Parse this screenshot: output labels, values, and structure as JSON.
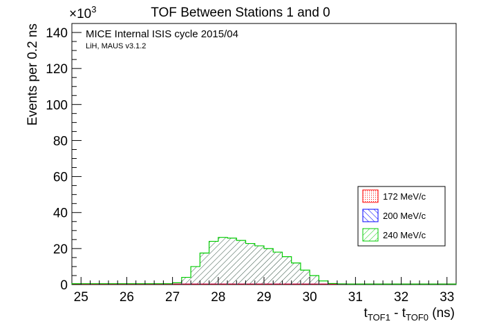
{
  "chart_data": {
    "type": "bar",
    "title": "TOF Between Stations 1 and 0",
    "xlabel_main": "t",
    "xlabel_sub1": "TOF1",
    "xlabel_mid": " - t",
    "xlabel_sub0": "TOF0",
    "xlabel_unit": " (ns)",
    "ylabel": "Events per 0.2 ns",
    "y_multiplier": "×10",
    "y_multiplier_exp": "3",
    "annotation": "MICE Internal ISIS cycle 2015/04",
    "annotation_sub": "LiH, MAUS v3.1.2",
    "xlim": [
      24.8,
      33.2
    ],
    "ylim": [
      0,
      145
    ],
    "x_ticks": [
      "25",
      "26",
      "27",
      "28",
      "29",
      "30",
      "31",
      "32",
      "33"
    ],
    "y_ticks": [
      "0",
      "20",
      "40",
      "60",
      "80",
      "100",
      "120",
      "140"
    ],
    "bin_width": 0.2,
    "x": [
      24.8,
      25.0,
      25.2,
      25.4,
      25.6,
      25.8,
      26.0,
      26.2,
      26.4,
      26.6,
      26.8,
      27.0,
      27.2,
      27.4,
      27.6,
      27.8,
      28.0,
      28.2,
      28.4,
      28.6,
      28.8,
      29.0,
      29.2,
      29.4,
      29.6,
      29.8,
      30.0,
      30.2,
      30.4,
      30.6,
      30.8,
      31.0,
      31.2,
      31.4,
      31.6,
      31.8,
      32.0,
      32.2,
      32.4,
      32.6,
      32.8,
      33.0
    ],
    "series": [
      {
        "name": "172 MeV/c",
        "color": "#ff0000",
        "hatch": "dots",
        "values": [
          0.3,
          0.3,
          0.3,
          0.3,
          0.3,
          0.3,
          0.3,
          0.3,
          0.3,
          0.3,
          0.3,
          0.3,
          0.3,
          0.3,
          0.3,
          0.3,
          0.3,
          0.3,
          0.3,
          0.3,
          0.3,
          0.3,
          0.3,
          0.3,
          0.3,
          0.3,
          0.3,
          0.3,
          0.3,
          0.3,
          0.3,
          0.3,
          0.3,
          0.3,
          0.3,
          0.3,
          0.3,
          0.3,
          0.3,
          0.3,
          0.3,
          0.3
        ]
      },
      {
        "name": "200 MeV/c",
        "color": "#0000ff",
        "hatch": "lines",
        "values": [
          0.3,
          0.3,
          0.3,
          0.3,
          0.3,
          0.3,
          0.3,
          0.3,
          0.3,
          0.3,
          0.3,
          0.3,
          0.3,
          0.3,
          0.3,
          0.3,
          0.3,
          0.3,
          0.3,
          0.3,
          0.3,
          0.3,
          0.3,
          0.3,
          0.3,
          0.3,
          0.3,
          0.3,
          0.3,
          0.3,
          0.3,
          0.3,
          0.3,
          0.3,
          0.3,
          0.3,
          0.3,
          0.3,
          0.3,
          0.3,
          0.3,
          0.3
        ]
      },
      {
        "name": "240 MeV/c",
        "color": "#00cc00",
        "hatch": "lines",
        "values": [
          0.5,
          0.5,
          0.5,
          0.5,
          0.5,
          0.5,
          0.5,
          0.5,
          0.5,
          0.5,
          0.5,
          1.0,
          4.0,
          10.0,
          17.5,
          24.0,
          26.2,
          25.8,
          24.5,
          22.8,
          21.5,
          20.0,
          18.0,
          15.5,
          12.0,
          8.0,
          5.0,
          2.0,
          0.6,
          0.4,
          0.3,
          0.3,
          0.3,
          0.3,
          0.3,
          0.3,
          0.3,
          0.3,
          0.3,
          0.3,
          0.3,
          0.3
        ]
      }
    ],
    "legend_position": "right",
    "grid": false
  }
}
